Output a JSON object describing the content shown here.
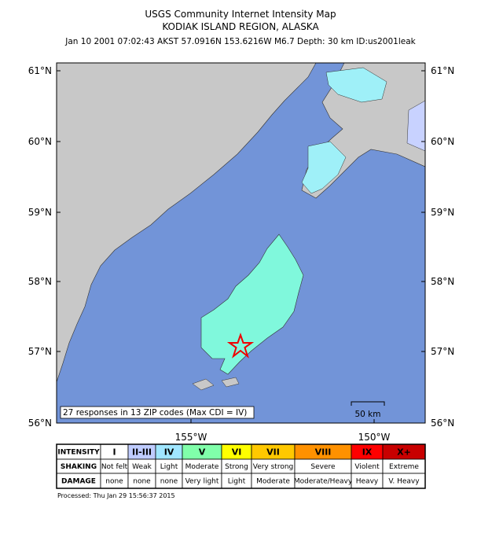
{
  "header": {
    "title": "USGS Community Internet Intensity Map",
    "region": "KODIAK ISLAND REGION, ALASKA",
    "details": "Jan 10 2001 07:02:43 AKST 57.0916N 153.6216W M6.7 Depth: 30 km ID:us2001leak"
  },
  "map": {
    "lat_labels": [
      "61°N",
      "60°N",
      "59°N",
      "58°N",
      "57°N",
      "56°N"
    ],
    "lon_labels": [
      "155°W",
      "150°W"
    ],
    "responses_note": "27 responses in 13 ZIP codes (Max CDI = IV)",
    "scale_label": "50 km"
  },
  "legend": {
    "rows": [
      {
        "label": "INTENSITY",
        "cells": [
          "I",
          "II-III",
          "IV",
          "V",
          "VI",
          "VII",
          "VIII",
          "IX",
          "X+"
        ]
      },
      {
        "label": "SHAKING",
        "cells": [
          "Not felt",
          "Weak",
          "Light",
          "Moderate",
          "Strong",
          "Very strong",
          "Severe",
          "Violent",
          "Extreme"
        ]
      },
      {
        "label": "DAMAGE",
        "cells": [
          "none",
          "none",
          "none",
          "Very light",
          "Light",
          "Moderate",
          "Moderate/Heavy",
          "Heavy",
          "V. Heavy"
        ]
      }
    ]
  },
  "footer": "Processed: Thu Jan 29 15:56:37 2015"
}
